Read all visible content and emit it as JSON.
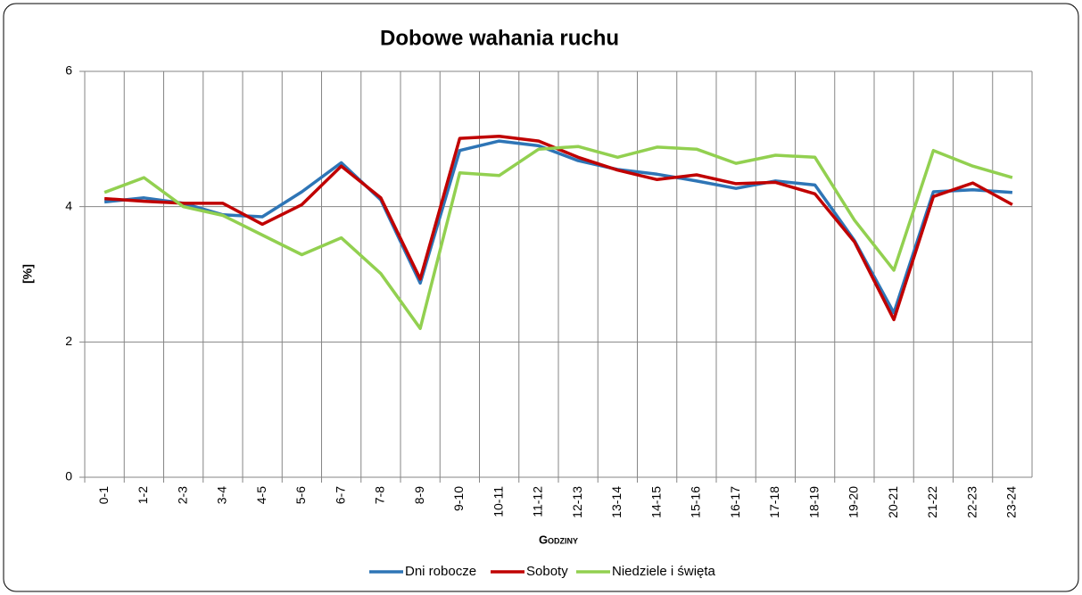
{
  "chart_data": {
    "type": "line",
    "title": "Dobowe wahania ruchu",
    "x_label": "Godziny",
    "y_label": "[%]",
    "categories": [
      "0-1",
      "1-2",
      "2-3",
      "3-4",
      "4-5",
      "5-6",
      "6-7",
      "7-8",
      "8-9",
      "9-10",
      "10-11",
      "11-12",
      "12-13",
      "13-14",
      "14-15",
      "15-16",
      "16-17",
      "17-18",
      "18-19",
      "19-20",
      "20-21",
      "21-22",
      "22-23",
      "23-24"
    ],
    "series": [
      {
        "name": "Dni robocze",
        "color": "#2e75b6",
        "values": [
          4.07,
          4.13,
          4.05,
          3.88,
          3.85,
          4.22,
          4.65,
          4.1,
          2.87,
          4.83,
          4.97,
          4.9,
          4.68,
          4.55,
          4.48,
          4.38,
          4.27,
          4.38,
          4.32,
          3.5,
          2.43,
          4.22,
          4.25,
          4.21
        ]
      },
      {
        "name": "Soboty",
        "color": "#c00000",
        "values": [
          4.12,
          4.08,
          4.05,
          4.05,
          3.74,
          4.03,
          4.6,
          4.13,
          2.93,
          5.01,
          5.04,
          4.97,
          4.73,
          4.54,
          4.4,
          4.47,
          4.34,
          4.36,
          4.19,
          3.48,
          2.33,
          4.15,
          4.35,
          4.03
        ]
      },
      {
        "name": "Niedziele i święta",
        "color": "#92d050",
        "values": [
          4.21,
          4.43,
          4.0,
          3.87,
          3.58,
          3.29,
          3.54,
          3.01,
          2.2,
          4.5,
          4.46,
          4.85,
          4.89,
          4.73,
          4.88,
          4.85,
          4.64,
          4.76,
          4.73,
          3.8,
          3.06,
          4.83,
          4.6,
          4.43
        ]
      }
    ],
    "ylim": [
      0,
      6
    ],
    "yticks": [
      0,
      2,
      4,
      6
    ],
    "grid": true,
    "legend": "bottom"
  }
}
